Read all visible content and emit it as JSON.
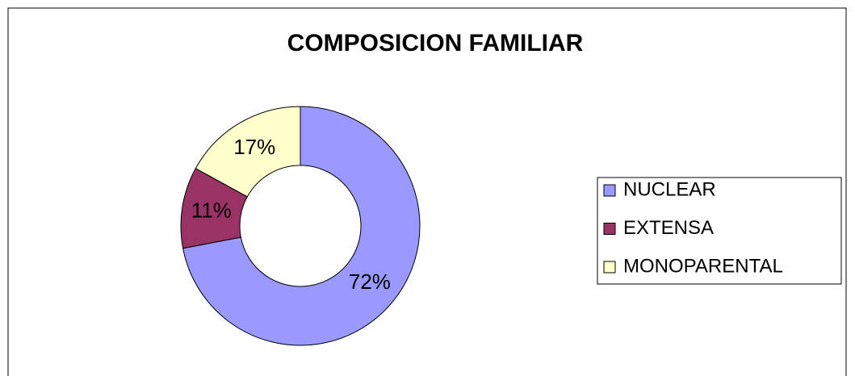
{
  "chart_data": {
    "type": "donut",
    "title": "COMPOSICION FAMILIAR",
    "categories": [
      "NUCLEAR",
      "EXTENSA",
      "MONOPARENTAL"
    ],
    "values": [
      72,
      11,
      17
    ],
    "value_labels": [
      "72%",
      "11%",
      "17%"
    ],
    "colors": [
      "#9999ff",
      "#993366",
      "#ffffcc"
    ],
    "legend": "right"
  }
}
